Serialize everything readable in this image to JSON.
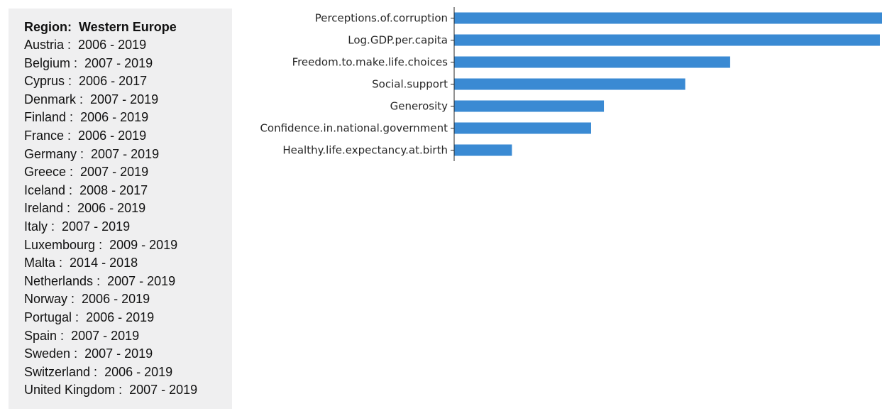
{
  "region": {
    "label": "Region:",
    "name": "Western Europe"
  },
  "countries": [
    {
      "name": "Austria",
      "years": "2006 - 2019"
    },
    {
      "name": "Belgium",
      "years": "2007 - 2019"
    },
    {
      "name": "Cyprus",
      "years": "2006 - 2017"
    },
    {
      "name": "Denmark",
      "years": "2007 - 2019"
    },
    {
      "name": "Finland",
      "years": "2006 - 2019"
    },
    {
      "name": "France",
      "years": "2006 - 2019"
    },
    {
      "name": "Germany",
      "years": "2007 - 2019"
    },
    {
      "name": "Greece",
      "years": "2007 - 2019"
    },
    {
      "name": "Iceland",
      "years": "2008 - 2017"
    },
    {
      "name": "Ireland",
      "years": "2006 - 2019"
    },
    {
      "name": "Italy",
      "years": "2007 - 2019"
    },
    {
      "name": "Luxembourg",
      "years": "2009 - 2019"
    },
    {
      "name": "Malta",
      "years": "2014 - 2018"
    },
    {
      "name": "Netherlands",
      "years": "2007 - 2019"
    },
    {
      "name": "Norway",
      "years": "2006 - 2019"
    },
    {
      "name": "Portugal",
      "years": "2006 - 2019"
    },
    {
      "name": "Spain",
      "years": "2007 - 2019"
    },
    {
      "name": "Sweden",
      "years": "2007 - 2019"
    },
    {
      "name": "Switzerland",
      "years": "2006 - 2019"
    },
    {
      "name": "United Kingdom",
      "years": "2007 - 2019"
    }
  ],
  "chart_data": {
    "type": "bar",
    "orientation": "horizontal",
    "categories": [
      "Perceptions.of.corruption",
      "Log.GDP.per.capita",
      "Freedom.to.make.life.choices",
      "Social.support",
      "Generosity",
      "Confidence.in.national.government",
      "Healthy.life.expectancy.at.birth"
    ],
    "values": [
      1.0,
      0.995,
      0.645,
      0.54,
      0.35,
      0.32,
      0.135
    ],
    "xlim": [
      0,
      1.0
    ],
    "title": "",
    "xlabel": "",
    "ylabel": "",
    "grid": false,
    "bar_color": "#3a8ad3"
  }
}
